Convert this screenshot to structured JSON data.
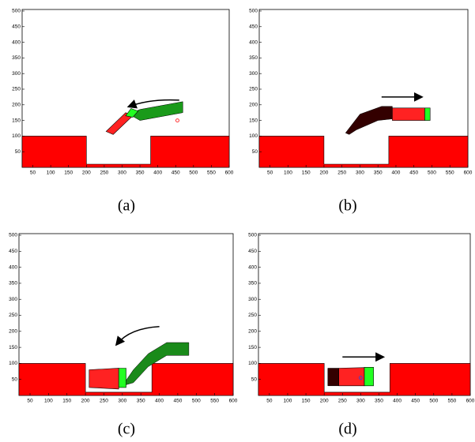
{
  "figure": {
    "panels": [
      {
        "caption": "(a)",
        "xlim": [
          20,
          600
        ],
        "ylim": [
          0,
          505
        ],
        "xticks": [
          50,
          100,
          150,
          200,
          250,
          300,
          350,
          400,
          450,
          500,
          550,
          600
        ],
        "yticks": [
          50,
          100,
          150,
          200,
          250,
          300,
          350,
          400,
          450,
          500
        ]
      },
      {
        "caption": "(b)",
        "xlim": [
          20,
          600
        ],
        "ylim": [
          0,
          505
        ],
        "xticks": [
          50,
          100,
          150,
          200,
          250,
          300,
          350,
          400,
          450,
          500,
          550,
          600
        ],
        "yticks": [
          50,
          100,
          150,
          200,
          250,
          300,
          350,
          400,
          450,
          500
        ]
      },
      {
        "caption": "(c)",
        "xlim": [
          20,
          600
        ],
        "ylim": [
          0,
          505
        ],
        "xticks": [
          50,
          100,
          150,
          200,
          250,
          300,
          350,
          400,
          450,
          500,
          550,
          600
        ],
        "yticks": [
          50,
          100,
          150,
          200,
          250,
          300,
          350,
          400,
          450,
          500
        ]
      },
      {
        "caption": "(d)",
        "xlim": [
          20,
          600
        ],
        "ylim": [
          0,
          505
        ],
        "xticks": [
          50,
          100,
          150,
          200,
          250,
          300,
          350,
          400,
          450,
          500,
          550,
          600
        ],
        "yticks": [
          50,
          100,
          150,
          200,
          250,
          300,
          350,
          400,
          450,
          500
        ]
      }
    ]
  }
}
